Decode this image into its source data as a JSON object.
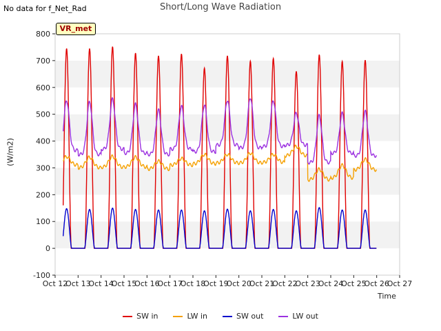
{
  "header": {
    "nodata": "No data for f_Net_Rad",
    "title": "Short/Long Wave Radiation",
    "badge": "VR_met"
  },
  "chart_data": {
    "type": "line",
    "title": "Short/Long Wave Radiation",
    "xlabel": "Time",
    "ylabel": "(W/m2)",
    "ylim": [
      -100,
      800
    ],
    "xlim": [
      12,
      27
    ],
    "yticks": [
      -100,
      0,
      100,
      200,
      300,
      400,
      500,
      600,
      700,
      800
    ],
    "xticks": [
      {
        "v": 12,
        "label": "Oct 12"
      },
      {
        "v": 13,
        "label": "Oct 13"
      },
      {
        "v": 14,
        "label": "Oct 14"
      },
      {
        "v": 15,
        "label": "Oct 15"
      },
      {
        "v": 16,
        "label": "Oct 16"
      },
      {
        "v": 17,
        "label": "Oct 17"
      },
      {
        "v": 18,
        "label": "Oct 18"
      },
      {
        "v": 19,
        "label": "Oct 19"
      },
      {
        "v": 20,
        "label": "Oct 20"
      },
      {
        "v": 21,
        "label": "Oct 21"
      },
      {
        "v": 22,
        "label": "Oct 22"
      },
      {
        "v": 23,
        "label": "Oct 23"
      },
      {
        "v": 24,
        "label": "Oct 24"
      },
      {
        "v": 25,
        "label": "Oct 25"
      },
      {
        "v": 26,
        "label": "Oct 26"
      },
      {
        "v": 27,
        "label": "Oct 27"
      }
    ],
    "data_start": 12.35,
    "data_end": 26.0,
    "series": [
      {
        "name": "SW in",
        "color": "#e00000",
        "daily_peaks": [
          745,
          745,
          752,
          728,
          718,
          725,
          672,
          718,
          698,
          708,
          660,
          722,
          697,
          702
        ]
      },
      {
        "name": "LW in",
        "color": "#f5a000",
        "daily_base": [
          310,
          300,
          302,
          303,
          295,
          310,
          315,
          318,
          318,
          320,
          345,
          255,
          262,
          292
        ],
        "daily_peaks": [
          342,
          340,
          343,
          340,
          325,
          335,
          350,
          350,
          355,
          350,
          380,
          295,
          310,
          332
        ]
      },
      {
        "name": "SW out",
        "color": "#0000cc",
        "daily_peaks": [
          148,
          145,
          150,
          145,
          143,
          143,
          140,
          146,
          140,
          145,
          140,
          152,
          143,
          143
        ]
      },
      {
        "name": "LW out",
        "color": "#9b30e0",
        "daily_base": [
          365,
          350,
          370,
          355,
          350,
          370,
          360,
          385,
          375,
          380,
          385,
          320,
          355,
          345
        ],
        "daily_peaks": [
          552,
          547,
          557,
          537,
          515,
          530,
          535,
          553,
          563,
          552,
          505,
          495,
          503,
          510
        ]
      }
    ]
  },
  "legend": {
    "items": [
      {
        "label": "SW in",
        "color": "#e00000"
      },
      {
        "label": "LW in",
        "color": "#f5a000"
      },
      {
        "label": "SW out",
        "color": "#0000cc"
      },
      {
        "label": "LW out",
        "color": "#9b30e0"
      }
    ]
  }
}
